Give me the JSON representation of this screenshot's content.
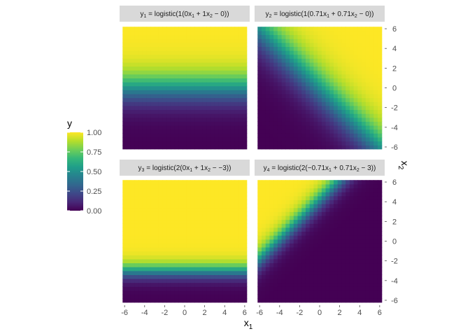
{
  "chart_data": {
    "type": "heatmap",
    "x": {
      "label_main": "x",
      "label_sub": "1",
      "range": [
        -6.5,
        6.5
      ],
      "ticks": [
        -6,
        -4,
        -2,
        0,
        2,
        4,
        6
      ],
      "tick_labels": [
        "-6",
        "-4",
        "-2",
        "0",
        "2",
        "4",
        "6"
      ]
    },
    "y": {
      "label_main": "x",
      "label_sub": "2",
      "range": [
        -6.5,
        6.5
      ],
      "ticks": [
        -6,
        -4,
        -2,
        0,
        2,
        4,
        6
      ],
      "tick_labels": [
        "-6",
        "-4",
        "-2",
        "0",
        "2",
        "4",
        "6"
      ],
      "position": "right"
    },
    "grid": {
      "cells_per_axis": 31,
      "cell_width": 0.4
    },
    "fill": {
      "name": "y",
      "scale": "viridis",
      "limits": [
        0,
        1
      ],
      "breaks": [
        0.0,
        0.25,
        0.5,
        0.75,
        1.0
      ],
      "break_labels": [
        "0.00",
        "0.25",
        "0.50",
        "0.75",
        "1.00"
      ]
    },
    "facets": [
      {
        "id": "y1",
        "label": "y1 = logistic(1(0x1 + 1x2 − 0))",
        "strip": [
          {
            "t": "y"
          },
          {
            "t": "1",
            "sub": true
          },
          {
            "t": " = logistic(1(0x"
          },
          {
            "t": "1",
            "sub": true
          },
          {
            "t": " + 1x"
          },
          {
            "t": "2",
            "sub": true
          },
          {
            "t": " − 0))"
          }
        ],
        "scale": 1,
        "a": 0,
        "b": 1,
        "c": 0
      },
      {
        "id": "y2",
        "label": "y2 = logistic(1(0.71x1 + 0.71x2 − 0))",
        "strip": [
          {
            "t": "y"
          },
          {
            "t": "2",
            "sub": true
          },
          {
            "t": " = logistic(1(0.71x"
          },
          {
            "t": "1",
            "sub": true
          },
          {
            "t": " + 0.71x"
          },
          {
            "t": "2",
            "sub": true
          },
          {
            "t": " − 0))"
          }
        ],
        "scale": 1,
        "a": 0.71,
        "b": 0.71,
        "c": 0
      },
      {
        "id": "y3",
        "label": "y3 = logistic(2(0x1 + 1x2 − −3))",
        "strip": [
          {
            "t": "y"
          },
          {
            "t": "3",
            "sub": true
          },
          {
            "t": " = logistic(2(0x"
          },
          {
            "t": "1",
            "sub": true
          },
          {
            "t": " + 1x"
          },
          {
            "t": "2",
            "sub": true
          },
          {
            "t": " − −3))"
          }
        ],
        "scale": 2,
        "a": 0,
        "b": 1,
        "c": -3
      },
      {
        "id": "y4",
        "label": "y4 = logistic(2(−0.71x1 + 0.71x2 − 3))",
        "strip": [
          {
            "t": "y"
          },
          {
            "t": "4",
            "sub": true
          },
          {
            "t": " = logistic(2(−0.71x"
          },
          {
            "t": "1",
            "sub": true
          },
          {
            "t": " + 0.71x"
          },
          {
            "t": "2",
            "sub": true
          },
          {
            "t": " − 3))"
          }
        ],
        "scale": 2,
        "a": -0.71,
        "b": 0.71,
        "c": 3
      }
    ],
    "layout": "2x2",
    "legend": "left"
  }
}
